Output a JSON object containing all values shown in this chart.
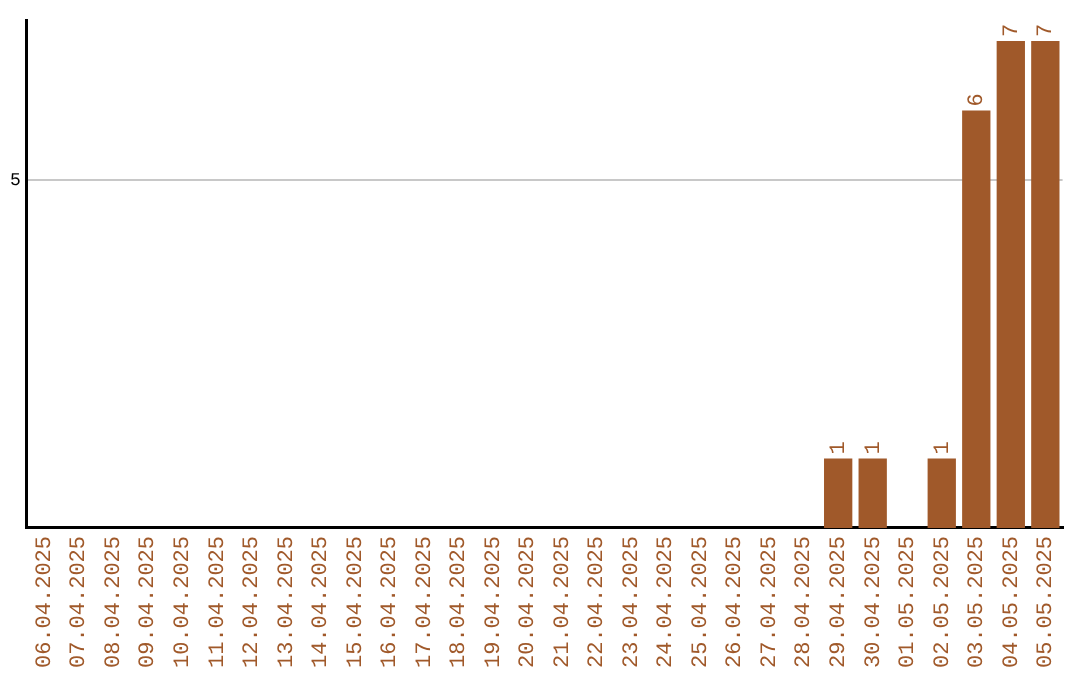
{
  "chart_data": {
    "type": "bar",
    "categories": [
      "06.04.2025",
      "07.04.2025",
      "08.04.2025",
      "09.04.2025",
      "10.04.2025",
      "11.04.2025",
      "12.04.2025",
      "13.04.2025",
      "14.04.2025",
      "15.04.2025",
      "16.04.2025",
      "17.04.2025",
      "18.04.2025",
      "19.04.2025",
      "20.04.2025",
      "21.04.2025",
      "22.04.2025",
      "23.04.2025",
      "24.04.2025",
      "25.04.2025",
      "26.04.2025",
      "27.04.2025",
      "28.04.2025",
      "29.04.2025",
      "30.04.2025",
      "01.05.2025",
      "02.05.2025",
      "03.05.2025",
      "04.05.2025",
      "05.05.2025"
    ],
    "values": [
      null,
      null,
      null,
      null,
      null,
      null,
      null,
      null,
      null,
      null,
      null,
      null,
      null,
      null,
      null,
      null,
      null,
      null,
      null,
      null,
      null,
      null,
      null,
      1,
      1,
      null,
      1,
      6,
      7,
      7
    ],
    "data_labels": true,
    "color": "#a0592a",
    "ylim": [
      0,
      7.3
    ],
    "yticks": [
      5
    ],
    "grid": "y"
  }
}
